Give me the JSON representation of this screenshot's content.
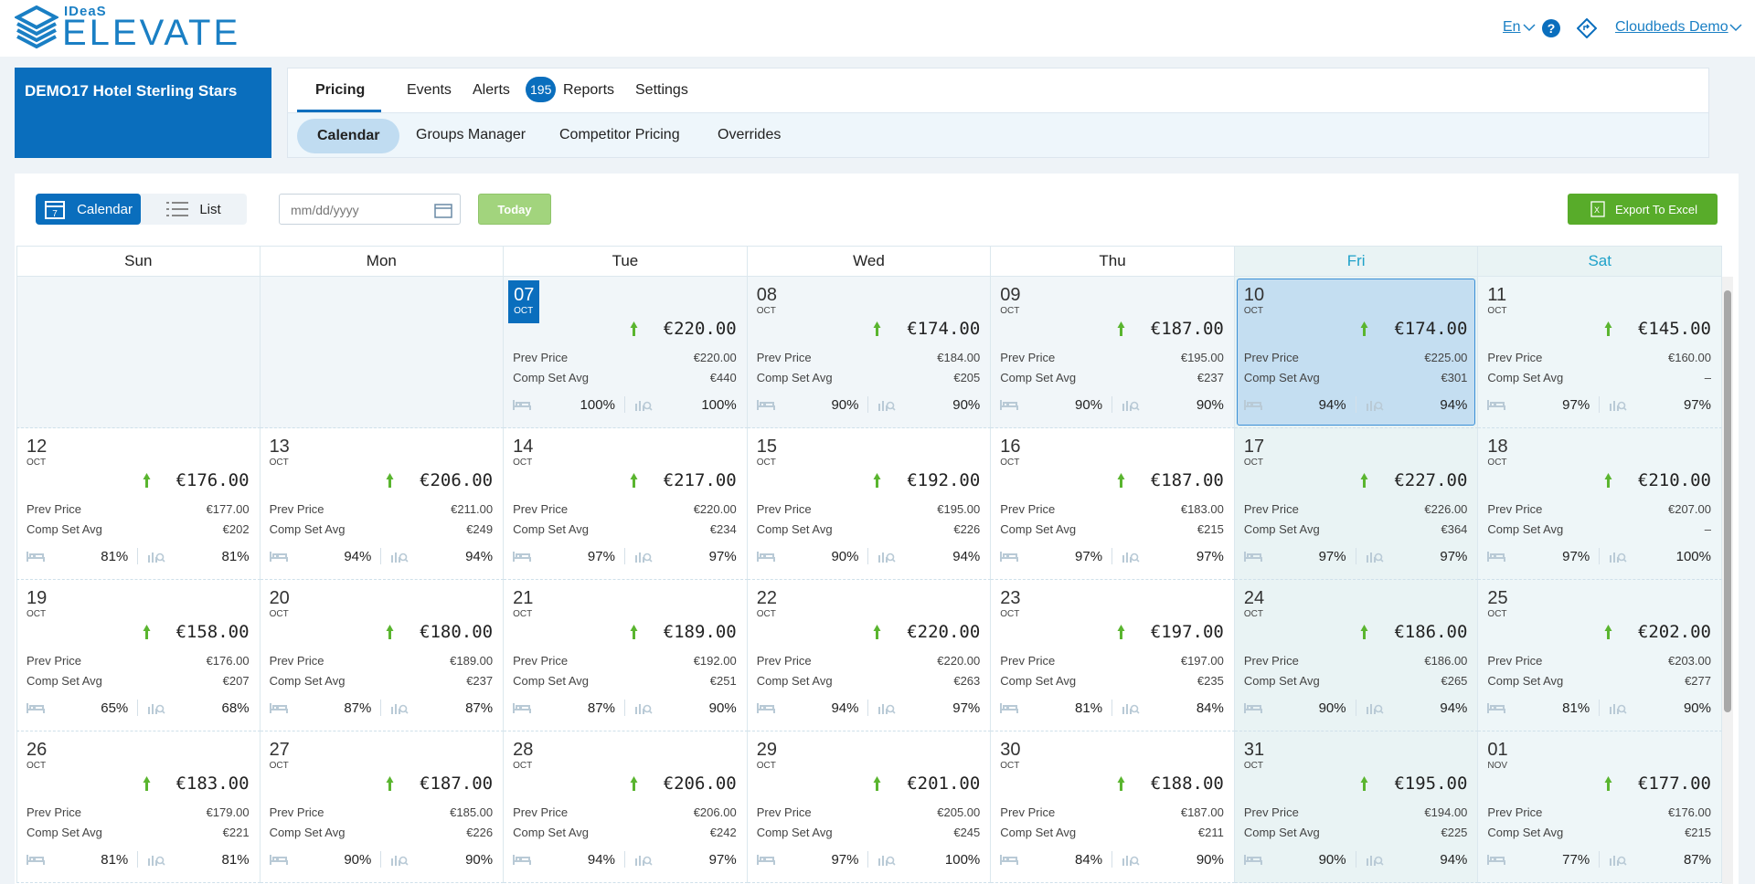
{
  "header": {
    "logo_top": "IDeaS",
    "logo_main": "ELEVATE",
    "language": "En",
    "account": "Cloudbeds Demo"
  },
  "hotel": "DEMO17 Hotel Sterling Stars",
  "tabs": [
    "Pricing",
    "Events",
    "Alerts",
    "Reports",
    "Settings"
  ],
  "alerts_badge": "195",
  "subtabs": [
    "Calendar",
    "Groups Manager",
    "Competitor Pricing",
    "Overrides"
  ],
  "toolbar": {
    "view_calendar": "Calendar",
    "view_list": "List",
    "date_placeholder": "mm/dd/yyyy",
    "today": "Today",
    "export": "Export To Excel"
  },
  "calendar": {
    "weekdays": [
      "Sun",
      "Mon",
      "Tue",
      "Wed",
      "Thu",
      "Fri",
      "Sat"
    ],
    "labels": {
      "prev": "Prev Price",
      "comp": "Comp Set Avg"
    },
    "weeks": [
      [
        null,
        null,
        {
          "day": "07",
          "month": "OCT",
          "price": "€220.00",
          "prev": "€220.00",
          "comp": "€440",
          "occ": "100%",
          "occ2": "100%"
        },
        {
          "day": "08",
          "month": "OCT",
          "price": "€174.00",
          "prev": "€184.00",
          "comp": "€205",
          "occ": "90%",
          "occ2": "90%"
        },
        {
          "day": "09",
          "month": "OCT",
          "price": "€187.00",
          "prev": "€195.00",
          "comp": "€237",
          "occ": "90%",
          "occ2": "90%"
        },
        {
          "day": "10",
          "month": "OCT",
          "price": "€174.00",
          "prev": "€225.00",
          "comp": "€301",
          "occ": "94%",
          "occ2": "94%"
        },
        {
          "day": "11",
          "month": "OCT",
          "price": "€145.00",
          "prev": "€160.00",
          "comp": "–",
          "occ": "97%",
          "occ2": "97%"
        }
      ],
      [
        {
          "day": "12",
          "month": "OCT",
          "price": "€176.00",
          "prev": "€177.00",
          "comp": "€202",
          "occ": "81%",
          "occ2": "81%"
        },
        {
          "day": "13",
          "month": "OCT",
          "price": "€206.00",
          "prev": "€211.00",
          "comp": "€249",
          "occ": "94%",
          "occ2": "94%"
        },
        {
          "day": "14",
          "month": "OCT",
          "price": "€217.00",
          "prev": "€220.00",
          "comp": "€234",
          "occ": "97%",
          "occ2": "97%"
        },
        {
          "day": "15",
          "month": "OCT",
          "price": "€192.00",
          "prev": "€195.00",
          "comp": "€226",
          "occ": "90%",
          "occ2": "94%"
        },
        {
          "day": "16",
          "month": "OCT",
          "price": "€187.00",
          "prev": "€183.00",
          "comp": "€215",
          "occ": "97%",
          "occ2": "97%"
        },
        {
          "day": "17",
          "month": "OCT",
          "price": "€227.00",
          "prev": "€226.00",
          "comp": "€364",
          "occ": "97%",
          "occ2": "97%"
        },
        {
          "day": "18",
          "month": "OCT",
          "price": "€210.00",
          "prev": "€207.00",
          "comp": "–",
          "occ": "97%",
          "occ2": "100%"
        }
      ],
      [
        {
          "day": "19",
          "month": "OCT",
          "price": "€158.00",
          "prev": "€176.00",
          "comp": "€207",
          "occ": "65%",
          "occ2": "68%"
        },
        {
          "day": "20",
          "month": "OCT",
          "price": "€180.00",
          "prev": "€189.00",
          "comp": "€237",
          "occ": "87%",
          "occ2": "87%"
        },
        {
          "day": "21",
          "month": "OCT",
          "price": "€189.00",
          "prev": "€192.00",
          "comp": "€251",
          "occ": "87%",
          "occ2": "90%"
        },
        {
          "day": "22",
          "month": "OCT",
          "price": "€220.00",
          "prev": "€220.00",
          "comp": "€263",
          "occ": "94%",
          "occ2": "97%"
        },
        {
          "day": "23",
          "month": "OCT",
          "price": "€197.00",
          "prev": "€197.00",
          "comp": "€235",
          "occ": "81%",
          "occ2": "84%"
        },
        {
          "day": "24",
          "month": "OCT",
          "price": "€186.00",
          "prev": "€186.00",
          "comp": "€265",
          "occ": "90%",
          "occ2": "94%"
        },
        {
          "day": "25",
          "month": "OCT",
          "price": "€202.00",
          "prev": "€203.00",
          "comp": "€277",
          "occ": "81%",
          "occ2": "90%"
        }
      ],
      [
        {
          "day": "26",
          "month": "OCT",
          "price": "€183.00",
          "prev": "€179.00",
          "comp": "€221",
          "occ": "81%",
          "occ2": "81%"
        },
        {
          "day": "27",
          "month": "OCT",
          "price": "€187.00",
          "prev": "€185.00",
          "comp": "€226",
          "occ": "90%",
          "occ2": "90%"
        },
        {
          "day": "28",
          "month": "OCT",
          "price": "€206.00",
          "prev": "€206.00",
          "comp": "€242",
          "occ": "94%",
          "occ2": "97%"
        },
        {
          "day": "29",
          "month": "OCT",
          "price": "€201.00",
          "prev": "€205.00",
          "comp": "€245",
          "occ": "97%",
          "occ2": "100%"
        },
        {
          "day": "30",
          "month": "OCT",
          "price": "€188.00",
          "prev": "€187.00",
          "comp": "€211",
          "occ": "84%",
          "occ2": "90%"
        },
        {
          "day": "31",
          "month": "OCT",
          "price": "€195.00",
          "prev": "€194.00",
          "comp": "€225",
          "occ": "90%",
          "occ2": "94%"
        },
        {
          "day": "01",
          "month": "NOV",
          "price": "€177.00",
          "prev": "€176.00",
          "comp": "€215",
          "occ": "77%",
          "occ2": "87%"
        }
      ]
    ]
  }
}
